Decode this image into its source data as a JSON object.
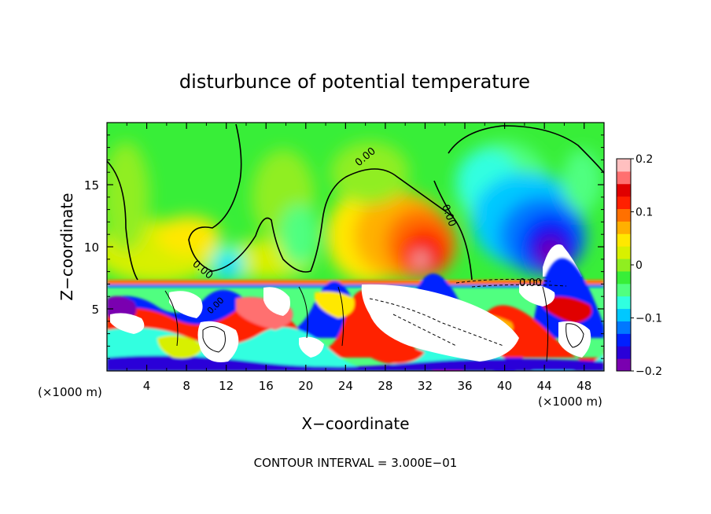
{
  "chart_data": {
    "type": "heatmap",
    "title": "disturbunce of potential temperature",
    "xlabel": "X−coordinate",
    "ylabel": "Z−coordinate",
    "x_unit_left": "(×1000 m)",
    "x_unit_right": "(×1000 m)",
    "xlim": [
      0,
      50
    ],
    "ylim": [
      0,
      20
    ],
    "x_ticks": [
      4,
      8,
      12,
      16,
      20,
      24,
      28,
      32,
      36,
      40,
      44,
      48
    ],
    "y_ticks": [
      5,
      10,
      15
    ],
    "colorbar": {
      "vmin": -0.2,
      "vmax": 0.2,
      "tick_values": [
        0.2,
        0.1,
        0,
        -0.1,
        -0.2
      ],
      "tick_labels": [
        "0.2",
        "0.1",
        "0",
        "−0.1",
        "−0.2"
      ],
      "colors": [
        "#7a00b0",
        "#2a00d8",
        "#0020ff",
        "#0078ff",
        "#00c8ff",
        "#30ffe0",
        "#50ff80",
        "#38ee38",
        "#90ee20",
        "#d8f000",
        "#ffe800",
        "#ffb000",
        "#ff7000",
        "#ff2000",
        "#e00000",
        "#ff7070",
        "#ffc0c0"
      ]
    },
    "contour_labels": [
      "0.00",
      "0.00",
      "0.00",
      "0.00",
      "0.00"
    ],
    "contour_interval": "CONTOUR INTERVAL = 3.000E−01",
    "features": [
      {
        "x": 31.5,
        "z": 9.5,
        "value": 0.2,
        "desc": "warm anomaly"
      },
      {
        "x": 44,
        "z": 9.5,
        "value": -0.2,
        "desc": "cold anomaly"
      },
      {
        "x": 12,
        "z": 9,
        "value": -0.08,
        "desc": "cool pocket"
      }
    ]
  }
}
